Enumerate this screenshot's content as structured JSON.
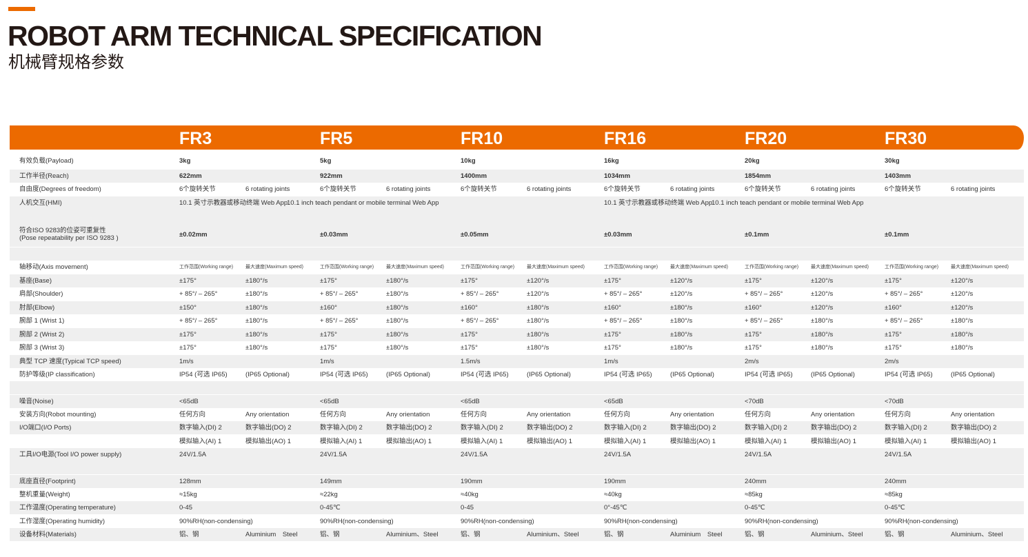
{
  "title": "ROBOT ARM TECHNICAL SPECIFICATION",
  "subtitle": "机械臂规格参数",
  "colors": {
    "accent": "#ec6a00",
    "row_shade": "#efefef",
    "text": "#333333"
  },
  "models": [
    "FR3",
    "FR5",
    "FR10",
    "FR16",
    "FR20",
    "FR30"
  ],
  "rows": [
    {
      "label": "有效负载(Payload)",
      "bold": true,
      "values": [
        "3kg",
        "5kg",
        "10kg",
        "16kg",
        "20kg",
        "30kg"
      ]
    },
    {
      "label": "工作半径(Reach)",
      "bold": true,
      "values": [
        "622mm",
        "922mm",
        "1400mm",
        "1034mm",
        "1854mm",
        "1403mm"
      ]
    },
    {
      "label": "自由度(Degrees of freedom)",
      "values": [
        [
          "6个旋转关节",
          "6 rotating joints"
        ],
        [
          "6个旋转关节",
          "6 rotating joints"
        ],
        [
          "6个旋转关节",
          "6 rotating joints"
        ],
        [
          "6个旋转关节",
          "6 rotating joints"
        ],
        [
          "6个旋转关节",
          "6 rotating joints"
        ],
        [
          "6个旋转关节",
          "6 rotating joints"
        ]
      ]
    },
    {
      "label": "人机交互(HMI)",
      "spans": [
        [
          "10.1 英寸示教器或移动终端 Web App",
          "10.1 inch teach pendant or mobile terminal Web App"
        ],
        [
          "10.1 英寸示教器或移动终端 Web App",
          "10.1 inch teach pendant or mobile terminal Web App"
        ]
      ]
    },
    {
      "label": "符合ISO 9283的位姿可重复性\n(Pose repeatability per ISO 9283 )",
      "bold": true,
      "values": [
        "±0.02mm",
        "±0.03mm",
        "±0.05mm",
        "±0.03mm",
        "±0.1mm",
        "±0.1mm"
      ]
    },
    {
      "label": "轴移动(Axis movement)",
      "sub": true,
      "values": [
        [
          "工作范围(Working range)",
          "最大速度(Maximum speed)"
        ],
        [
          "工作范围(Working range)",
          "最大速度(Maximum speed)"
        ],
        [
          "工作范围(Working range)",
          "最大速度(Maximum speed)"
        ],
        [
          "工作范围(Working range)",
          "最大速度(Maximum speed)"
        ],
        [
          "工作范围(Working range)",
          "最大速度(Maximum speed)"
        ],
        [
          "工作范围(Working range)",
          "最大速度(Maximum speed)"
        ]
      ]
    },
    {
      "label": "基座(Base)",
      "values": [
        [
          "±175°",
          "±180°/s"
        ],
        [
          "±175°",
          "±180°/s"
        ],
        [
          "±175°",
          "±120°/s"
        ],
        [
          "±175°",
          "±120°/s"
        ],
        [
          "±175°",
          "±120°/s"
        ],
        [
          "±175°",
          "±120°/s"
        ]
      ]
    },
    {
      "label": "肩部(Shoulder)",
      "values": [
        [
          "+ 85°/ – 265°",
          "±180°/s"
        ],
        [
          "+ 85°/ – 265°",
          "±180°/s"
        ],
        [
          "+ 85°/ – 265°",
          "±120°/s"
        ],
        [
          "+ 85°/ – 265°",
          "±120°/s"
        ],
        [
          "+ 85°/ – 265°",
          "±120°/s"
        ],
        [
          "+ 85°/ – 265°",
          "±120°/s"
        ]
      ]
    },
    {
      "label": "肘部(Elbow)",
      "values": [
        [
          "±150°",
          "±180°/s"
        ],
        [
          "±160°",
          "±180°/s"
        ],
        [
          "±160°",
          "±180°/s"
        ],
        [
          "±160°",
          "±180°/s"
        ],
        [
          "±160°",
          "±120°/s"
        ],
        [
          "±160°",
          "±120°/s"
        ]
      ]
    },
    {
      "label": "腕部 1 (Wrist 1)",
      "values": [
        [
          "+ 85°/ – 265°",
          "±180°/s"
        ],
        [
          "+ 85°/ – 265°",
          "±180°/s"
        ],
        [
          "+ 85°/ – 265°",
          "±180°/s"
        ],
        [
          "+ 85°/ – 265°",
          "±180°/s"
        ],
        [
          "+ 85°/ – 265°",
          "±180°/s"
        ],
        [
          "+ 85°/ – 265°",
          "±180°/s"
        ]
      ]
    },
    {
      "label": "腕部 2 (Wrist 2)",
      "values": [
        [
          "±175°",
          "±180°/s"
        ],
        [
          "±175°",
          "±180°/s"
        ],
        [
          "±175°",
          "±180°/s"
        ],
        [
          "±175°",
          "±180°/s"
        ],
        [
          "±175°",
          "±180°/s"
        ],
        [
          "±175°",
          "±180°/s"
        ]
      ]
    },
    {
      "label": "腕部 3 (Wrist 3)",
      "values": [
        [
          "±175°",
          "±180°/s"
        ],
        [
          "±175°",
          "±180°/s"
        ],
        [
          "±175°",
          "±180°/s"
        ],
        [
          "±175°",
          "±180°/s"
        ],
        [
          "±175°",
          "±180°/s"
        ],
        [
          "±175°",
          "±180°/s"
        ]
      ]
    },
    {
      "label": "典型 TCP 速度(Typical TCP speed)",
      "values": [
        "1m/s",
        "1m/s",
        "1.5m/s",
        "1m/s",
        "2m/s",
        "2m/s"
      ]
    },
    {
      "label": "防护等级(IP classification)",
      "values": [
        [
          "IP54 (可选 IP65)",
          "(IP65 Optional)"
        ],
        [
          "IP54 (可选 IP65)",
          "(IP65 Optional)"
        ],
        [
          "IP54 (可选 IP65)",
          "(IP65 Optional)"
        ],
        [
          "IP54 (可选 IP65)",
          "(IP65 Optional)"
        ],
        [
          "IP54 (可选 IP65)",
          "(IP65 Optional)"
        ],
        [
          "IP54 (可选 IP65)",
          "(IP65 Optional)"
        ]
      ]
    },
    {
      "label": "噪音(Noise)",
      "values": [
        "<65dB",
        "<65dB",
        "<65dB",
        "<65dB",
        "<70dB",
        "<70dB"
      ]
    },
    {
      "label": "安装方向(Robot mounting)",
      "values": [
        [
          "任何方向",
          "Any orientation"
        ],
        [
          "任何方向",
          "Any orientation"
        ],
        [
          "任何方向",
          "Any orientation"
        ],
        [
          "任何方向",
          "Any orientation"
        ],
        [
          "任何方向",
          "Any orientation"
        ],
        [
          "任何方向",
          "Any orientation"
        ]
      ]
    },
    {
      "label": "I/O端口(I/O Ports)",
      "values": [
        [
          "数字输入(DI) 2",
          "数字输出(DO) 2"
        ],
        [
          "数字输入(DI) 2",
          "数字输出(DO) 2"
        ],
        [
          "数字输入(DI) 2",
          "数字输出(DO) 2"
        ],
        [
          "数字输入(DI) 2",
          "数字输出(DO) 2"
        ],
        [
          "数字输入(DI) 2",
          "数字输出(DO) 2"
        ],
        [
          "数字输入(DI) 2",
          "数字输出(DO) 2"
        ]
      ]
    },
    {
      "label": "",
      "values": [
        [
          "模拟输入(AI) 1",
          "模拟输出(AO) 1"
        ],
        [
          "模拟输入(AI) 1",
          "模拟输出(AO) 1"
        ],
        [
          "模拟输入(AI) 1",
          "模拟输出(AO) 1"
        ],
        [
          "模拟输入(AI) 1",
          "模拟输出(AO) 1"
        ],
        [
          "模拟输入(AI) 1",
          "模拟输出(AO) 1"
        ],
        [
          "模拟输入(AI) 1",
          "模拟输出(AO) 1"
        ]
      ]
    },
    {
      "label": "工具I/O电源(Tool I/O power supply)",
      "values": [
        "24V/1.5A",
        "24V/1.5A",
        "24V/1.5A",
        "24V/1.5A",
        "24V/1.5A",
        "24V/1.5A"
      ]
    },
    {
      "label": "底座直径(Footprint)",
      "values": [
        "128mm",
        "149mm",
        "190mm",
        "190mm",
        "240mm",
        "240mm"
      ]
    },
    {
      "label": "整机重量(Weight)",
      "values": [
        "≈15kg",
        "≈22kg",
        "≈40kg",
        "≈40kg",
        "≈85kg",
        "≈85kg"
      ]
    },
    {
      "label": "工作温度(Operating temperature)",
      "values": [
        "0-45",
        "0-45℃",
        "0-45",
        "0°-45℃",
        "0-45℃",
        "0-45℃"
      ]
    },
    {
      "label": "工作湿度(Operating humidity)",
      "values": [
        "90%RH(non-condensing)",
        "90%RH(non-condensing)",
        "90%RH(non-condensing)",
        "90%RH(non-condensing)",
        "90%RH(non-condensing)",
        "90%RH(non-condensing)"
      ]
    },
    {
      "label": "设备材料(Materials)",
      "values": [
        [
          "铝、钢",
          "Aluminium　Steel"
        ],
        [
          "铝、钢",
          "Aluminium、Steel"
        ],
        [
          "铝、钢",
          "Aluminium、Steel"
        ],
        [
          "铝、钢",
          "Aluminium　Steel"
        ],
        [
          "铝、钢",
          "Aluminium、Steel"
        ],
        [
          "铝、钢",
          "Aluminium、Steel"
        ]
      ]
    }
  ]
}
